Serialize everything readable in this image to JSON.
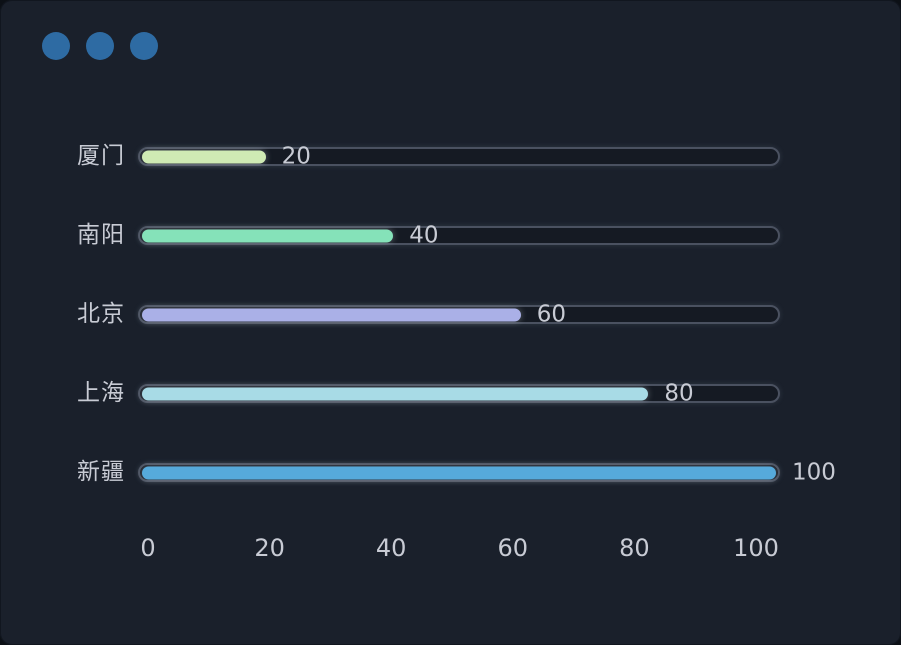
{
  "window": {
    "dot_color": "#2e6ba3",
    "dot_count": 3,
    "background": "#1a202b"
  },
  "chart_data": {
    "type": "bar",
    "orientation": "horizontal",
    "title": "",
    "xlabel": "",
    "ylabel": "",
    "categories": [
      "厦门",
      "南阳",
      "北京",
      "上海",
      "新疆"
    ],
    "values": [
      20,
      40,
      60,
      80,
      100
    ],
    "value_labels": [
      "20",
      "40",
      "60",
      "80",
      "100"
    ],
    "bar_colors": [
      "#cfeab4",
      "#85e2b9",
      "#aab0e7",
      "#a8dbe6",
      "#56aadb"
    ],
    "xlim": [
      0,
      100
    ],
    "x_ticks": [
      "0",
      "20",
      "40",
      "60",
      "80",
      "100"
    ],
    "x_tick_values": [
      0,
      20,
      40,
      60,
      80,
      100
    ],
    "grid": false,
    "legend": "none",
    "track_color": "#151a23",
    "track_border_color": "#4a5160",
    "label_color": "#c8cbd4"
  }
}
